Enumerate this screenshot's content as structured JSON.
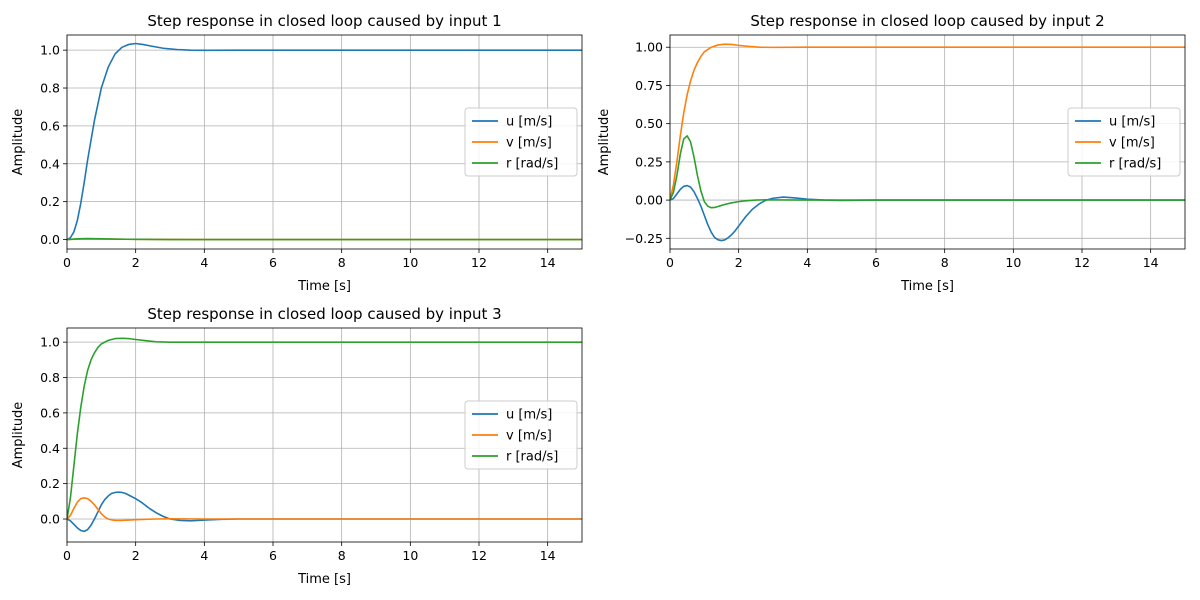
{
  "figure": {
    "background": "#ffffff",
    "series_colors": {
      "u [m/s]": "#1f77b4",
      "v [m/s]": "#ff7f0e",
      "r [rad/s]": "#2ca02c"
    }
  },
  "chart_data": [
    {
      "type": "line",
      "title": "Step response in closed loop caused by input 1",
      "xlabel": "Time [s]",
      "ylabel": "Amplitude",
      "xlim": [
        0,
        15
      ],
      "ylim": [
        -0.05,
        1.08
      ],
      "xticks": [
        0,
        2,
        4,
        6,
        8,
        10,
        12,
        14
      ],
      "xtick_labels": [
        "0",
        "2",
        "4",
        "6",
        "8",
        "10",
        "12",
        "14"
      ],
      "yticks": [
        0.0,
        0.2,
        0.4,
        0.6,
        0.8,
        1.0
      ],
      "ytick_labels": [
        "0.0",
        "0.2",
        "0.4",
        "0.6",
        "0.8",
        "1.0"
      ],
      "grid": true,
      "legend": "center-right",
      "series": [
        {
          "name": "u [m/s]",
          "color": "#1f77b4",
          "x": [
            0,
            0.1,
            0.2,
            0.3,
            0.4,
            0.5,
            0.6,
            0.8,
            1.0,
            1.2,
            1.4,
            1.6,
            1.8,
            2.0,
            2.2,
            2.5,
            2.8,
            3.2,
            3.6,
            4.0,
            5.0,
            6.0,
            8.0,
            10.0,
            12.0,
            14.0,
            15.0
          ],
          "y": [
            0,
            0.01,
            0.04,
            0.1,
            0.19,
            0.3,
            0.42,
            0.63,
            0.8,
            0.91,
            0.98,
            1.015,
            1.03,
            1.035,
            1.03,
            1.02,
            1.01,
            1.003,
            1.0,
            0.999,
            1.0,
            1.0,
            1.0,
            1.0,
            1.0,
            1.0,
            1.0
          ]
        },
        {
          "name": "v [m/s]",
          "color": "#ff7f0e",
          "x": [
            0,
            0.5,
            1.0,
            2.0,
            4.0,
            8.0,
            15.0
          ],
          "y": [
            0,
            0.004,
            0.003,
            0.001,
            0.0,
            0.0,
            0.0
          ]
        },
        {
          "name": "r [rad/s]",
          "color": "#2ca02c",
          "x": [
            0,
            0.3,
            0.6,
            1.0,
            1.5,
            2.0,
            3.0,
            4.0,
            8.0,
            15.0
          ],
          "y": [
            0,
            0.004,
            0.005,
            0.004,
            0.002,
            0.001,
            0.0,
            0.0,
            0.0,
            0.0
          ]
        }
      ]
    },
    {
      "type": "line",
      "title": "Step response in closed loop caused by input 2",
      "xlabel": "Time [s]",
      "ylabel": "Amplitude",
      "xlim": [
        0,
        15
      ],
      "ylim": [
        -0.32,
        1.08
      ],
      "xticks": [
        0,
        2,
        4,
        6,
        8,
        10,
        12,
        14
      ],
      "xtick_labels": [
        "0",
        "2",
        "4",
        "6",
        "8",
        "10",
        "12",
        "14"
      ],
      "yticks": [
        -0.25,
        0.0,
        0.25,
        0.5,
        0.75,
        1.0
      ],
      "ytick_labels": [
        "−0.25",
        "0.00",
        "0.25",
        "0.50",
        "0.75",
        "1.00"
      ],
      "grid": true,
      "legend": "center-right",
      "series": [
        {
          "name": "u [m/s]",
          "color": "#1f77b4",
          "x": [
            0,
            0.1,
            0.2,
            0.3,
            0.4,
            0.5,
            0.6,
            0.7,
            0.8,
            0.9,
            1.0,
            1.1,
            1.2,
            1.3,
            1.4,
            1.5,
            1.6,
            1.7,
            1.8,
            1.9,
            2.0,
            2.2,
            2.4,
            2.6,
            2.8,
            3.0,
            3.3,
            3.6,
            4.0,
            4.5,
            5.0,
            6.0,
            8.0,
            15.0
          ],
          "y": [
            0,
            0.01,
            0.04,
            0.07,
            0.09,
            0.095,
            0.085,
            0.055,
            0.01,
            -0.04,
            -0.1,
            -0.16,
            -0.21,
            -0.245,
            -0.26,
            -0.265,
            -0.26,
            -0.245,
            -0.225,
            -0.2,
            -0.17,
            -0.11,
            -0.06,
            -0.025,
            0.0,
            0.012,
            0.02,
            0.015,
            0.006,
            0.0,
            -0.002,
            0.0,
            0.0,
            0.0
          ]
        },
        {
          "name": "v [m/s]",
          "color": "#ff7f0e",
          "x": [
            0,
            0.1,
            0.2,
            0.3,
            0.4,
            0.5,
            0.6,
            0.7,
            0.8,
            0.9,
            1.0,
            1.2,
            1.4,
            1.6,
            1.8,
            2.0,
            2.3,
            2.6,
            3.0,
            4.0,
            6.0,
            10.0,
            15.0
          ],
          "y": [
            0,
            0.1,
            0.25,
            0.42,
            0.57,
            0.69,
            0.78,
            0.85,
            0.9,
            0.94,
            0.97,
            1.0,
            1.015,
            1.02,
            1.018,
            1.012,
            1.005,
            1.0,
            0.999,
            1.0,
            1.0,
            1.0,
            1.0
          ]
        },
        {
          "name": "r [rad/s]",
          "color": "#2ca02c",
          "x": [
            0,
            0.1,
            0.2,
            0.3,
            0.4,
            0.5,
            0.6,
            0.7,
            0.8,
            0.9,
            1.0,
            1.1,
            1.2,
            1.3,
            1.4,
            1.5,
            1.6,
            1.8,
            2.0,
            2.2,
            2.5,
            2.8,
            3.2,
            4.0,
            6.0,
            15.0
          ],
          "y": [
            0,
            0.05,
            0.16,
            0.3,
            0.4,
            0.42,
            0.38,
            0.28,
            0.16,
            0.06,
            -0.01,
            -0.04,
            -0.05,
            -0.048,
            -0.042,
            -0.035,
            -0.028,
            -0.018,
            -0.01,
            -0.005,
            0.0,
            0.002,
            0.001,
            0.0,
            0.0,
            0.0
          ]
        }
      ]
    },
    {
      "type": "line",
      "title": "Step response in closed loop caused by input 3",
      "xlabel": "Time [s]",
      "ylabel": "Amplitude",
      "xlim": [
        0,
        15
      ],
      "ylim": [
        -0.13,
        1.08
      ],
      "xticks": [
        0,
        2,
        4,
        6,
        8,
        10,
        12,
        14
      ],
      "xtick_labels": [
        "0",
        "2",
        "4",
        "6",
        "8",
        "10",
        "12",
        "14"
      ],
      "yticks": [
        0.0,
        0.2,
        0.4,
        0.6,
        0.8,
        1.0
      ],
      "ytick_labels": [
        "0.0",
        "0.2",
        "0.4",
        "0.6",
        "0.8",
        "1.0"
      ],
      "grid": true,
      "legend": "center-right",
      "series": [
        {
          "name": "u [m/s]",
          "color": "#1f77b4",
          "x": [
            0,
            0.1,
            0.2,
            0.3,
            0.4,
            0.5,
            0.6,
            0.7,
            0.8,
            0.9,
            1.0,
            1.1,
            1.2,
            1.3,
            1.4,
            1.5,
            1.6,
            1.7,
            1.8,
            2.0,
            2.2,
            2.4,
            2.6,
            2.8,
            3.0,
            3.3,
            3.6,
            4.0,
            4.5,
            5.0,
            6.0,
            8.0,
            15.0
          ],
          "y": [
            0,
            -0.01,
            -0.03,
            -0.05,
            -0.065,
            -0.07,
            -0.06,
            -0.035,
            0.0,
            0.04,
            0.08,
            0.11,
            0.13,
            0.145,
            0.15,
            0.152,
            0.15,
            0.145,
            0.135,
            0.115,
            0.09,
            0.06,
            0.035,
            0.015,
            0.0,
            -0.008,
            -0.01,
            -0.006,
            -0.002,
            0.0,
            0.0,
            0.0,
            0.0
          ]
        },
        {
          "name": "v [m/s]",
          "color": "#ff7f0e",
          "x": [
            0,
            0.1,
            0.2,
            0.3,
            0.4,
            0.5,
            0.6,
            0.7,
            0.8,
            0.9,
            1.0,
            1.1,
            1.2,
            1.3,
            1.4,
            1.6,
            1.8,
            2.0,
            2.3,
            2.6,
            3.0,
            4.0,
            6.0,
            15.0
          ],
          "y": [
            0,
            0.02,
            0.06,
            0.095,
            0.115,
            0.12,
            0.115,
            0.1,
            0.08,
            0.055,
            0.03,
            0.012,
            0.0,
            -0.005,
            -0.008,
            -0.008,
            -0.006,
            -0.004,
            -0.002,
            0.0,
            0.001,
            0.0,
            0.0,
            0.0
          ]
        },
        {
          "name": "r [rad/s]",
          "color": "#2ca02c",
          "x": [
            0,
            0.1,
            0.2,
            0.3,
            0.4,
            0.5,
            0.6,
            0.7,
            0.8,
            0.9,
            1.0,
            1.2,
            1.4,
            1.6,
            1.8,
            2.0,
            2.3,
            2.6,
            3.0,
            4.0,
            6.0,
            10.0,
            15.0
          ],
          "y": [
            0,
            0.12,
            0.3,
            0.48,
            0.63,
            0.75,
            0.84,
            0.9,
            0.94,
            0.97,
            0.99,
            1.01,
            1.02,
            1.022,
            1.02,
            1.015,
            1.008,
            1.002,
            1.0,
            1.0,
            1.0,
            1.0,
            1.0
          ]
        }
      ]
    }
  ]
}
